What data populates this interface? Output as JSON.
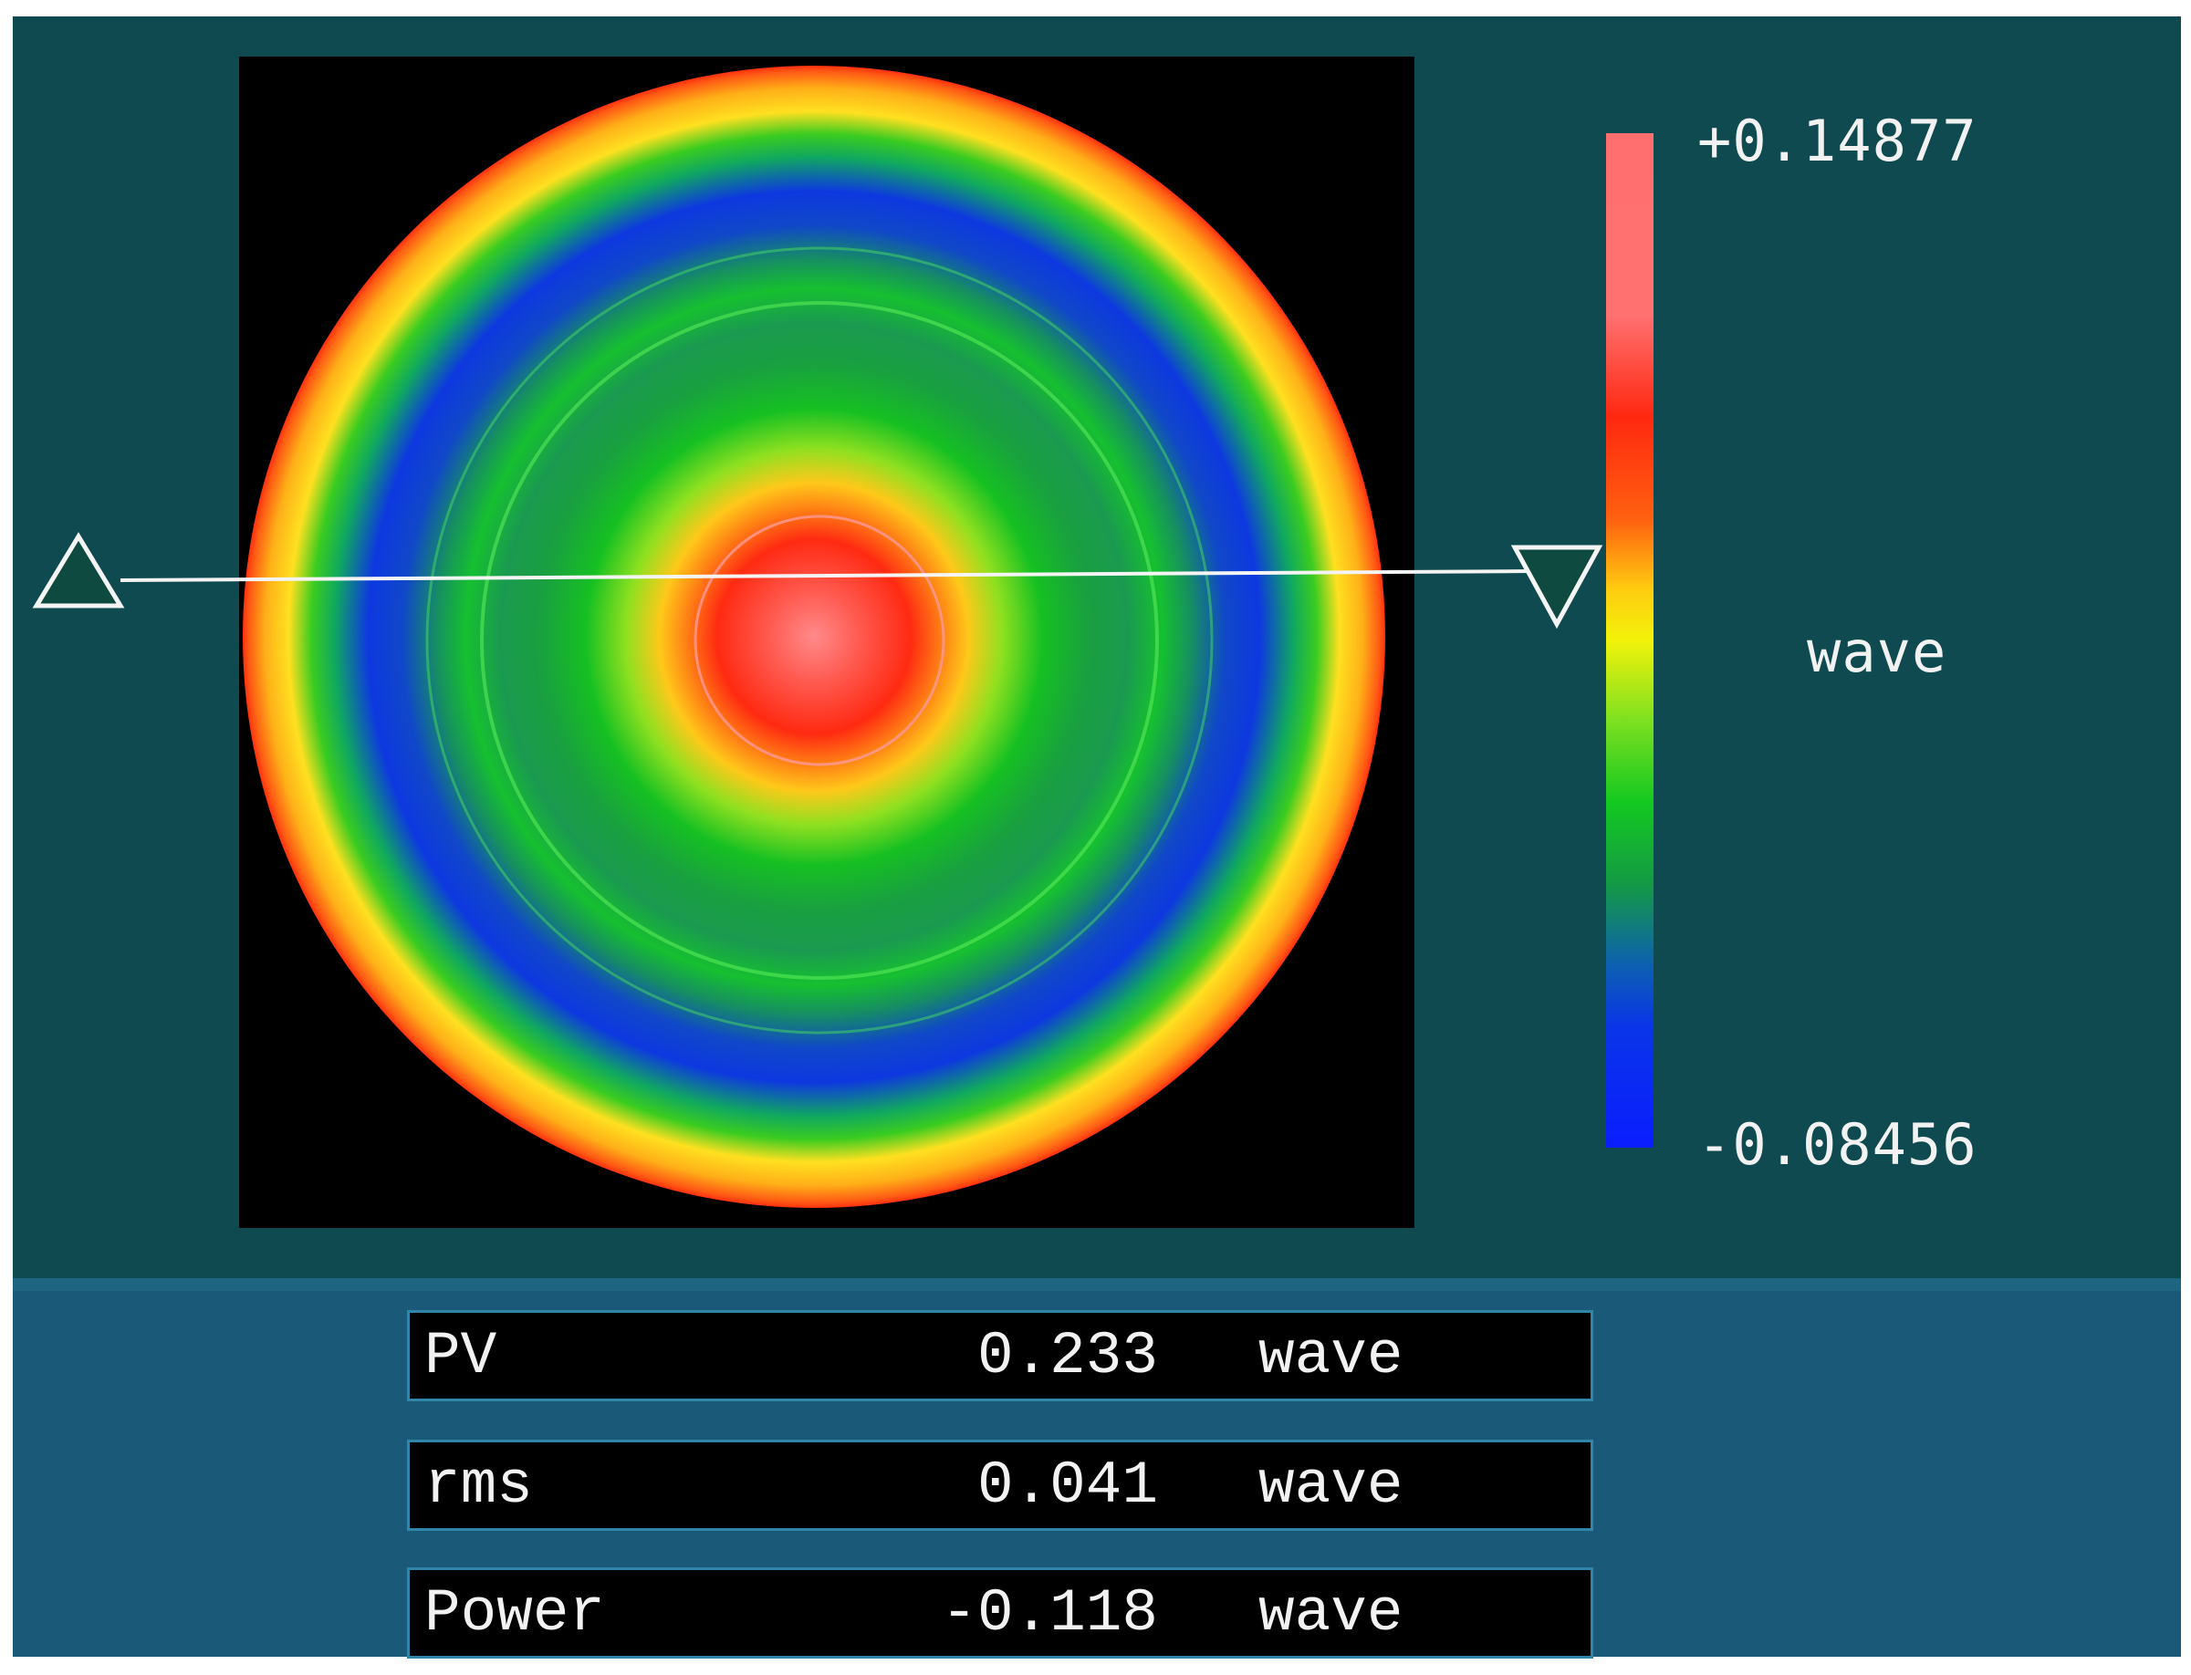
{
  "colorbar": {
    "max_label": "+0.14877",
    "min_label": "-0.08456",
    "unit": "wave",
    "max_value": 0.14877,
    "min_value": -0.08456
  },
  "map": {
    "description_icon": "surface-map-icon",
    "profile_markers": [
      "triangle-up-marker-icon",
      "triangle-down-marker-icon"
    ]
  },
  "stats": [
    {
      "name": "PV",
      "value": "0.233",
      "unit": "wave"
    },
    {
      "name": "rms",
      "value": "0.041",
      "unit": "wave"
    },
    {
      "name": "Power",
      "value": "-0.118",
      "unit": "wave"
    }
  ],
  "colors": {
    "panel": "#0e4a4f",
    "lower_panel": "#1a5a78",
    "box_border": "#2f86a8",
    "text": "#f2f2f2"
  }
}
